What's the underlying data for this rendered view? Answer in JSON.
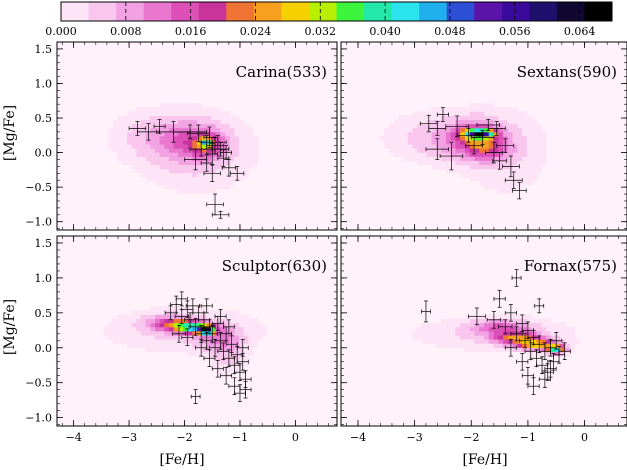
{
  "colorbar": {
    "tick_labels": [
      "0.000",
      "0.008",
      "0.016",
      "0.024",
      "0.032",
      "0.040",
      "0.048",
      "0.056",
      "0.064"
    ],
    "tick_values": [
      0.0,
      0.008,
      0.016,
      0.024,
      0.032,
      0.04,
      0.048,
      0.056,
      0.064
    ],
    "range": [
      0.0,
      0.068
    ],
    "colors": [
      "#fde4f6",
      "#f9c6ee",
      "#f2a2e2",
      "#e977d0",
      "#dc50b8",
      "#c8349c",
      "#f07434",
      "#f7a020",
      "#f6d000",
      "#b8ee00",
      "#3cf53c",
      "#24e8a8",
      "#2ce4ee",
      "#20b0ee",
      "#2d50d6",
      "#5a14a8",
      "#3a0a9c",
      "#20106e",
      "#100830",
      "#000000"
    ]
  },
  "axes": {
    "xlabel": "[Fe/H]",
    "ylabel": "[Mg/Fe]",
    "x_ticks": [
      "−4",
      "−3",
      "−2",
      "−1",
      "0"
    ],
    "y_ticks": [
      "−1.0",
      "−0.5",
      "0.0",
      "0.5",
      "1.0",
      "1.5"
    ]
  },
  "chart_data": [
    {
      "type": "heatmap",
      "panel": "top-left",
      "label": "Carina(533)",
      "xlim": [
        -4.3,
        0.75
      ],
      "ylim": [
        -1.12,
        1.6
      ],
      "density_peaks": [
        {
          "x": -2.6,
          "y": 0.25,
          "sx": 0.45,
          "sy": 0.22,
          "amp": 0.004
        },
        {
          "x": -1.8,
          "y": 0.0,
          "sx": 0.65,
          "sy": 0.35,
          "amp": 0.0045
        },
        {
          "x": -1.9,
          "y": 0.18,
          "sx": 0.42,
          "sy": 0.2,
          "amp": 0.01
        },
        {
          "x": -1.6,
          "y": 0.12,
          "sx": 0.22,
          "sy": 0.13,
          "amp": 0.012
        },
        {
          "x": -1.62,
          "y": 0.15,
          "sx": 0.06,
          "sy": 0.04,
          "amp": 0.025
        }
      ],
      "points": [
        {
          "x": -2.85,
          "y": 0.35,
          "ex": 0.15,
          "ey": 0.1
        },
        {
          "x": -2.65,
          "y": 0.3,
          "ex": 0.2,
          "ey": 0.12
        },
        {
          "x": -2.45,
          "y": 0.38,
          "ex": 0.1,
          "ey": 0.1
        },
        {
          "x": -2.2,
          "y": 0.3,
          "ex": 0.3,
          "ey": 0.15
        },
        {
          "x": -1.9,
          "y": 0.3,
          "ex": 0.3,
          "ey": 0.1
        },
        {
          "x": -1.75,
          "y": 0.28,
          "ex": 0.2,
          "ey": 0.12
        },
        {
          "x": -1.6,
          "y": 0.15,
          "ex": 0.1,
          "ey": 0.1
        },
        {
          "x": -1.55,
          "y": 0.22,
          "ex": 0.1,
          "ey": 0.15
        },
        {
          "x": -1.7,
          "y": 0.05,
          "ex": 0.2,
          "ey": 0.1
        },
        {
          "x": -1.45,
          "y": 0.1,
          "ex": 0.15,
          "ey": 0.12
        },
        {
          "x": -1.5,
          "y": -0.02,
          "ex": 0.1,
          "ey": 0.15
        },
        {
          "x": -1.35,
          "y": 0.05,
          "ex": 0.15,
          "ey": 0.1
        },
        {
          "x": -1.4,
          "y": 0.15,
          "ex": 0.15,
          "ey": 0.1
        },
        {
          "x": -1.25,
          "y": 0.0,
          "ex": 0.1,
          "ey": 0.1
        },
        {
          "x": -1.6,
          "y": -0.15,
          "ex": 0.1,
          "ey": 0.12
        },
        {
          "x": -1.5,
          "y": -0.3,
          "ex": 0.15,
          "ey": 0.12
        },
        {
          "x": -1.2,
          "y": -0.22,
          "ex": 0.12,
          "ey": 0.12
        },
        {
          "x": -1.05,
          "y": -0.3,
          "ex": 0.12,
          "ey": 0.1
        },
        {
          "x": -1.8,
          "y": -0.1,
          "ex": 0.2,
          "ey": 0.15
        },
        {
          "x": -1.3,
          "y": -0.08,
          "ex": 0.1,
          "ey": 0.12
        },
        {
          "x": -1.45,
          "y": -0.75,
          "ex": 0.15,
          "ey": 0.15
        },
        {
          "x": -1.35,
          "y": -0.9,
          "ex": 0.15,
          "ey": 0.05
        }
      ]
    },
    {
      "type": "heatmap",
      "panel": "top-right",
      "label": "Sextans(590)",
      "xlim": [
        -4.3,
        0.75
      ],
      "ylim": [
        -1.12,
        1.6
      ],
      "density_peaks": [
        {
          "x": -2.7,
          "y": 0.22,
          "sx": 0.55,
          "sy": 0.22,
          "amp": 0.004
        },
        {
          "x": -2.0,
          "y": 0.2,
          "sx": 0.45,
          "sy": 0.2,
          "amp": 0.01
        },
        {
          "x": -1.9,
          "y": 0.25,
          "sx": 0.22,
          "sy": 0.13,
          "amp": 0.012
        },
        {
          "x": -1.85,
          "y": 0.28,
          "sx": 0.18,
          "sy": 0.04,
          "amp": 0.044
        },
        {
          "x": -1.7,
          "y": 0.05,
          "sx": 0.28,
          "sy": 0.12,
          "amp": 0.01
        },
        {
          "x": -1.4,
          "y": 0.0,
          "sx": 0.5,
          "sy": 0.4,
          "amp": 0.003
        }
      ],
      "points": [
        {
          "x": -2.75,
          "y": 0.42,
          "ex": 0.15,
          "ey": 0.12
        },
        {
          "x": -2.6,
          "y": 0.35,
          "ex": 0.15,
          "ey": 0.1
        },
        {
          "x": -2.5,
          "y": 0.55,
          "ex": 0.1,
          "ey": 0.1
        },
        {
          "x": -2.25,
          "y": 0.38,
          "ex": 0.2,
          "ey": 0.15
        },
        {
          "x": -2.05,
          "y": 0.25,
          "ex": 0.2,
          "ey": 0.1
        },
        {
          "x": -1.95,
          "y": 0.1,
          "ex": 0.15,
          "ey": 0.12
        },
        {
          "x": -1.8,
          "y": 0.22,
          "ex": 0.2,
          "ey": 0.1
        },
        {
          "x": -1.7,
          "y": 0.4,
          "ex": 0.2,
          "ey": 0.08
        },
        {
          "x": -1.55,
          "y": 0.35,
          "ex": 0.15,
          "ey": 0.1
        },
        {
          "x": -1.6,
          "y": 0.0,
          "ex": 0.15,
          "ey": 0.15
        },
        {
          "x": -1.4,
          "y": 0.1,
          "ex": 0.15,
          "ey": 0.1
        },
        {
          "x": -1.5,
          "y": -0.12,
          "ex": 0.12,
          "ey": 0.12
        },
        {
          "x": -2.6,
          "y": 0.05,
          "ex": 0.2,
          "ey": 0.15
        },
        {
          "x": -2.35,
          "y": -0.05,
          "ex": 0.2,
          "ey": 0.2
        },
        {
          "x": -1.3,
          "y": -0.2,
          "ex": 0.15,
          "ey": 0.15
        },
        {
          "x": -1.25,
          "y": -0.4,
          "ex": 0.15,
          "ey": 0.12
        },
        {
          "x": -1.15,
          "y": -0.55,
          "ex": 0.12,
          "ey": 0.12
        }
      ]
    },
    {
      "type": "heatmap",
      "panel": "bottom-left",
      "label": "Sculptor(630)",
      "xlim": [
        -4.3,
        0.75
      ],
      "ylim": [
        -1.12,
        1.6
      ],
      "density_peaks": [
        {
          "x": -2.0,
          "y": 0.25,
          "sx": 0.9,
          "sy": 0.2,
          "amp": 0.004
        },
        {
          "x": -2.3,
          "y": 0.35,
          "sx": 0.3,
          "sy": 0.08,
          "amp": 0.012
        },
        {
          "x": -2.0,
          "y": 0.32,
          "sx": 0.22,
          "sy": 0.06,
          "amp": 0.02
        },
        {
          "x": -1.75,
          "y": 0.28,
          "sx": 0.2,
          "sy": 0.05,
          "amp": 0.03
        },
        {
          "x": -1.6,
          "y": 0.25,
          "sx": 0.08,
          "sy": 0.04,
          "amp": 0.044
        },
        {
          "x": -1.4,
          "y": 0.15,
          "sx": 0.25,
          "sy": 0.12,
          "amp": 0.008
        },
        {
          "x": -1.2,
          "y": -0.05,
          "sx": 0.2,
          "sy": 0.2,
          "amp": 0.005
        }
      ],
      "points": [
        {
          "x": -2.25,
          "y": 0.5,
          "ex": 0.1,
          "ey": 0.1
        },
        {
          "x": -2.15,
          "y": 0.62,
          "ex": 0.1,
          "ey": 0.12
        },
        {
          "x": -2.05,
          "y": 0.45,
          "ex": 0.12,
          "ey": 0.1
        },
        {
          "x": -1.95,
          "y": 0.55,
          "ex": 0.1,
          "ey": 0.12
        },
        {
          "x": -1.9,
          "y": 0.4,
          "ex": 0.1,
          "ey": 0.1
        },
        {
          "x": -1.85,
          "y": 0.6,
          "ex": 0.12,
          "ey": 0.1
        },
        {
          "x": -1.8,
          "y": 0.3,
          "ex": 0.1,
          "ey": 0.12
        },
        {
          "x": -1.75,
          "y": 0.5,
          "ex": 0.1,
          "ey": 0.1
        },
        {
          "x": -1.7,
          "y": 0.2,
          "ex": 0.1,
          "ey": 0.12
        },
        {
          "x": -1.65,
          "y": 0.4,
          "ex": 0.1,
          "ey": 0.1
        },
        {
          "x": -1.6,
          "y": 0.1,
          "ex": 0.1,
          "ey": 0.12
        },
        {
          "x": -1.55,
          "y": 0.3,
          "ex": 0.1,
          "ey": 0.1
        },
        {
          "x": -1.5,
          "y": 0.2,
          "ex": 0.1,
          "ey": 0.12
        },
        {
          "x": -1.45,
          "y": 0.0,
          "ex": 0.1,
          "ey": 0.12
        },
        {
          "x": -1.4,
          "y": 0.35,
          "ex": 0.1,
          "ey": 0.1
        },
        {
          "x": -1.35,
          "y": 0.1,
          "ex": 0.1,
          "ey": 0.12
        },
        {
          "x": -1.3,
          "y": -0.05,
          "ex": 0.1,
          "ey": 0.12
        },
        {
          "x": -1.25,
          "y": 0.2,
          "ex": 0.1,
          "ey": 0.1
        },
        {
          "x": -1.2,
          "y": -0.15,
          "ex": 0.1,
          "ey": 0.12
        },
        {
          "x": -1.15,
          "y": 0.05,
          "ex": 0.1,
          "ey": 0.12
        },
        {
          "x": -1.1,
          "y": -0.25,
          "ex": 0.1,
          "ey": 0.12
        },
        {
          "x": -1.05,
          "y": -0.1,
          "ex": 0.1,
          "ey": 0.12
        },
        {
          "x": -1.0,
          "y": -0.35,
          "ex": 0.1,
          "ey": 0.12
        },
        {
          "x": -0.95,
          "y": -0.2,
          "ex": 0.1,
          "ey": 0.12
        },
        {
          "x": -0.9,
          "y": -0.45,
          "ex": 0.1,
          "ey": 0.12
        },
        {
          "x": -2.1,
          "y": 0.2,
          "ex": 0.12,
          "ey": 0.12
        },
        {
          "x": -1.95,
          "y": 0.15,
          "ex": 0.1,
          "ey": 0.12
        },
        {
          "x": -1.7,
          "y": 0.0,
          "ex": 0.1,
          "ey": 0.12
        },
        {
          "x": -1.55,
          "y": -0.15,
          "ex": 0.1,
          "ey": 0.12
        },
        {
          "x": -1.4,
          "y": -0.3,
          "ex": 0.1,
          "ey": 0.12
        },
        {
          "x": -1.25,
          "y": -0.4,
          "ex": 0.1,
          "ey": 0.12
        },
        {
          "x": -1.1,
          "y": -0.55,
          "ex": 0.1,
          "ey": 0.12
        },
        {
          "x": -1.0,
          "y": -0.65,
          "ex": 0.1,
          "ey": 0.12
        },
        {
          "x": -1.8,
          "y": -0.7,
          "ex": 0.08,
          "ey": 0.1
        },
        {
          "x": -2.05,
          "y": 0.7,
          "ex": 0.1,
          "ey": 0.1
        },
        {
          "x": -1.6,
          "y": 0.6,
          "ex": 0.1,
          "ey": 0.1
        },
        {
          "x": -1.35,
          "y": 0.45,
          "ex": 0.1,
          "ey": 0.1
        },
        {
          "x": -1.2,
          "y": 0.3,
          "ex": 0.1,
          "ey": 0.1
        },
        {
          "x": -0.95,
          "y": 0.0,
          "ex": 0.1,
          "ey": 0.12
        },
        {
          "x": -0.9,
          "y": -0.6,
          "ex": 0.1,
          "ey": 0.12
        }
      ]
    },
    {
      "type": "heatmap",
      "panel": "bottom-right",
      "label": "Fornax(575)",
      "xlim": [
        -4.3,
        0.75
      ],
      "ylim": [
        -1.12,
        1.6
      ],
      "density_peaks": [
        {
          "x": -1.6,
          "y": 0.2,
          "sx": 0.9,
          "sy": 0.15,
          "amp": 0.004
        },
        {
          "x": -1.5,
          "y": 0.3,
          "sx": 0.35,
          "sy": 0.07,
          "amp": 0.012
        },
        {
          "x": -1.2,
          "y": 0.15,
          "sx": 0.28,
          "sy": 0.06,
          "amp": 0.02
        },
        {
          "x": -0.85,
          "y": 0.05,
          "sx": 0.25,
          "sy": 0.05,
          "amp": 0.028
        },
        {
          "x": -0.5,
          "y": -0.02,
          "sx": 0.1,
          "sy": 0.04,
          "amp": 0.04
        }
      ],
      "points": [
        {
          "x": -2.8,
          "y": 0.52,
          "ex": 0.08,
          "ey": 0.15
        },
        {
          "x": -1.9,
          "y": 0.45,
          "ex": 0.15,
          "ey": 0.12
        },
        {
          "x": -1.6,
          "y": 0.4,
          "ex": 0.12,
          "ey": 0.12
        },
        {
          "x": -1.5,
          "y": 0.7,
          "ex": 0.1,
          "ey": 0.12
        },
        {
          "x": -1.4,
          "y": 0.3,
          "ex": 0.12,
          "ey": 0.1
        },
        {
          "x": -1.3,
          "y": 0.5,
          "ex": 0.1,
          "ey": 0.12
        },
        {
          "x": -1.2,
          "y": 1.0,
          "ex": 0.08,
          "ey": 0.12
        },
        {
          "x": -1.2,
          "y": 0.2,
          "ex": 0.1,
          "ey": 0.1
        },
        {
          "x": -1.1,
          "y": 0.35,
          "ex": 0.1,
          "ey": 0.12
        },
        {
          "x": -1.05,
          "y": 0.1,
          "ex": 0.1,
          "ey": 0.1
        },
        {
          "x": -1.0,
          "y": 0.25,
          "ex": 0.1,
          "ey": 0.12
        },
        {
          "x": -0.95,
          "y": -0.05,
          "ex": 0.1,
          "ey": 0.12
        },
        {
          "x": -0.9,
          "y": 0.15,
          "ex": 0.1,
          "ey": 0.1
        },
        {
          "x": -0.85,
          "y": -0.15,
          "ex": 0.1,
          "ey": 0.12
        },
        {
          "x": -0.8,
          "y": 0.05,
          "ex": 0.1,
          "ey": 0.12
        },
        {
          "x": -0.75,
          "y": -0.25,
          "ex": 0.1,
          "ey": 0.12
        },
        {
          "x": -0.7,
          "y": -0.05,
          "ex": 0.1,
          "ey": 0.12
        },
        {
          "x": -0.65,
          "y": -0.35,
          "ex": 0.1,
          "ey": 0.12
        },
        {
          "x": -0.6,
          "y": 0.0,
          "ex": 0.1,
          "ey": 0.12
        },
        {
          "x": -0.55,
          "y": -0.2,
          "ex": 0.1,
          "ey": 0.12
        },
        {
          "x": -0.5,
          "y": 0.1,
          "ex": 0.1,
          "ey": 0.12
        },
        {
          "x": -0.45,
          "y": -0.1,
          "ex": 0.1,
          "ey": 0.12
        },
        {
          "x": -0.35,
          "y": -0.05,
          "ex": 0.1,
          "ey": 0.12
        },
        {
          "x": -0.8,
          "y": 0.6,
          "ex": 0.08,
          "ey": 0.1
        },
        {
          "x": -1.0,
          "y": -0.4,
          "ex": 0.1,
          "ey": 0.12
        },
        {
          "x": -0.9,
          "y": -0.55,
          "ex": 0.1,
          "ey": 0.12
        },
        {
          "x": -0.7,
          "y": -0.45,
          "ex": 0.1,
          "ey": 0.12
        },
        {
          "x": -1.1,
          "y": -0.2,
          "ex": 0.1,
          "ey": 0.12
        },
        {
          "x": -1.3,
          "y": 0.0,
          "ex": 0.1,
          "ey": 0.12
        },
        {
          "x": -0.6,
          "y": -0.3,
          "ex": 0.1,
          "ey": 0.12
        }
      ]
    }
  ]
}
